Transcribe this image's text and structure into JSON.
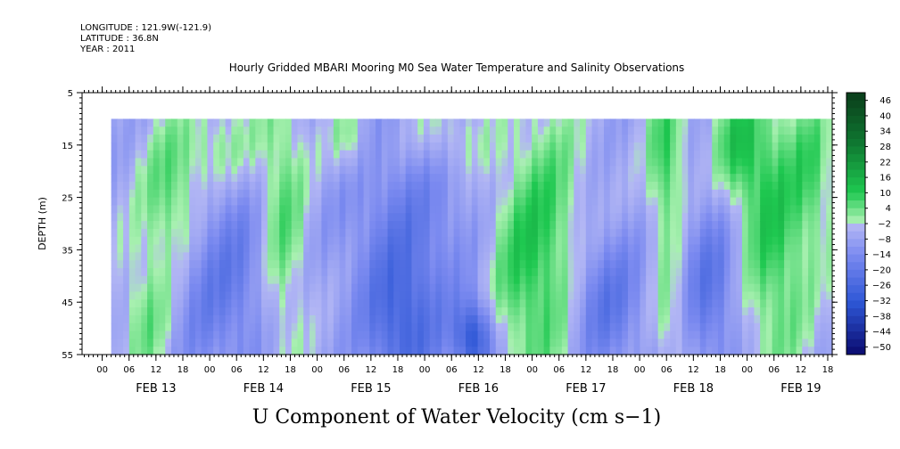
{
  "header": {
    "longitude_line": "LONGITUDE : 121.9W(-121.9)",
    "latitude_line": "LATITUDE : 36.8N",
    "year_line": "YEAR : 2011"
  },
  "chart_data": {
    "type": "heatmap",
    "title": "Hourly Gridded MBARI Mooring M0 Sea Water Temperature and Salinity Observations",
    "xlabel": "U Component of Water Velocity (cm s−1)",
    "ylabel": "DEPTH (m)",
    "ylim": [
      55,
      5
    ],
    "y_ticks": [
      5,
      15,
      25,
      35,
      45,
      55
    ],
    "x_hour_labels": [
      "00",
      "06",
      "12",
      "18",
      "00",
      "06",
      "12",
      "18",
      "00",
      "06",
      "12",
      "18",
      "00",
      "06",
      "12",
      "18",
      "00",
      "06",
      "12",
      "18",
      "00",
      "06",
      "12",
      "18",
      "00",
      "06",
      "12",
      "18"
    ],
    "x_day_labels": [
      "FEB 13",
      "FEB 14",
      "FEB 15",
      "FEB 16",
      "FEB 17",
      "FEB 18",
      "FEB 19"
    ],
    "x_range_hours": [
      -4.5,
      163
    ],
    "data_x_range_hours": [
      2,
      163
    ],
    "data_y_range": [
      10,
      55
    ],
    "colorbar": {
      "labels": [
        "46",
        "40",
        "34",
        "28",
        "22",
        "16",
        "10",
        "4",
        "−2",
        "−8",
        "−14",
        "−20",
        "−26",
        "−32",
        "−38",
        "−44",
        "−50"
      ],
      "range": [
        -50,
        50
      ],
      "colors": {
        "max": "#0a3d1a",
        "pos_high": "#0f7a32",
        "pos_mid": "#1ec850",
        "pos_low": "#a8f0b0",
        "neg_low": "#b2b6f4",
        "neg_mid": "#7b8af0",
        "neg_high": "#2e57d6",
        "min": "#0a0a6e"
      }
    },
    "field_notes": "U velocity (cm s-1) vs time (hours from FEB 13 00) and depth; values approximated as a smooth reconstruction of the visible pattern",
    "features": [
      {
        "t": 16,
        "z": 25,
        "amp": 14,
        "st": 5,
        "sz": 10
      },
      {
        "t": 10,
        "z": 48,
        "amp": 10,
        "st": 4,
        "sz": 10
      },
      {
        "t": 26,
        "z": 15,
        "amp": 9,
        "st": 6,
        "sz": 6
      },
      {
        "t": 40,
        "z": 30,
        "amp": 14,
        "st": 4,
        "sz": 20
      },
      {
        "t": 55,
        "z": 14,
        "amp": 9,
        "st": 3,
        "sz": 5
      },
      {
        "t": 77,
        "z": 13,
        "amp": 8,
        "st": 6,
        "sz": 5
      },
      {
        "t": 92,
        "z": 38,
        "amp": 9,
        "st": 5,
        "sz": 15
      },
      {
        "t": 100,
        "z": 35,
        "amp": 14,
        "st": 6,
        "sz": 20
      },
      {
        "t": 126,
        "z": 18,
        "amp": 16,
        "st": 3,
        "sz": 12
      },
      {
        "t": 127,
        "z": 48,
        "amp": 10,
        "st": 3,
        "sz": 8
      },
      {
        "t": 142,
        "z": 15,
        "amp": 14,
        "st": 4,
        "sz": 8
      },
      {
        "t": 150,
        "z": 32,
        "amp": 16,
        "st": 6,
        "sz": 20
      },
      {
        "t": 159,
        "z": 20,
        "amp": 10,
        "st": 3,
        "sz": 10
      },
      {
        "t": 32,
        "z": 40,
        "amp": -10,
        "st": 6,
        "sz": 14
      },
      {
        "t": 67,
        "z": 50,
        "amp": -18,
        "st": 6,
        "sz": 10
      },
      {
        "t": 68,
        "z": 30,
        "amp": -10,
        "st": 10,
        "sz": 12
      },
      {
        "t": 83,
        "z": 52,
        "amp": -26,
        "st": 3,
        "sz": 5
      },
      {
        "t": 112,
        "z": 45,
        "amp": -14,
        "st": 6,
        "sz": 10
      },
      {
        "t": 136,
        "z": 42,
        "amp": -14,
        "st": 5,
        "sz": 12
      },
      {
        "t": 22,
        "z": 40,
        "amp": -8,
        "st": 5,
        "sz": 15
      }
    ]
  }
}
